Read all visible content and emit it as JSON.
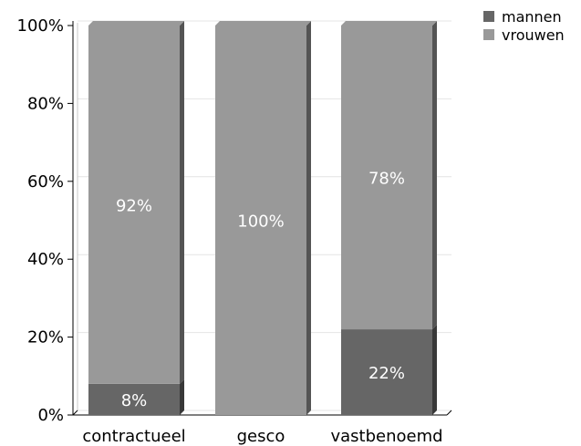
{
  "chart_data": {
    "type": "bar",
    "stacked": true,
    "percent": true,
    "categories": [
      "contractueel",
      "gesco",
      "vastbenoemd"
    ],
    "series": [
      {
        "name": "mannen",
        "values": [
          8,
          0,
          22
        ],
        "labels": [
          "8%",
          "",
          "22%"
        ],
        "color": "#666666"
      },
      {
        "name": "vrouwen",
        "values": [
          92,
          100,
          78
        ],
        "labels": [
          "92%",
          "100%",
          "78%"
        ],
        "color": "#999999"
      }
    ],
    "ylim": [
      0,
      100
    ],
    "yticks": [
      "0%",
      "20%",
      "40%",
      "60%",
      "80%",
      "100%"
    ],
    "title": "",
    "xlabel": "",
    "ylabel": "",
    "grid": true,
    "legend": "top-right"
  }
}
